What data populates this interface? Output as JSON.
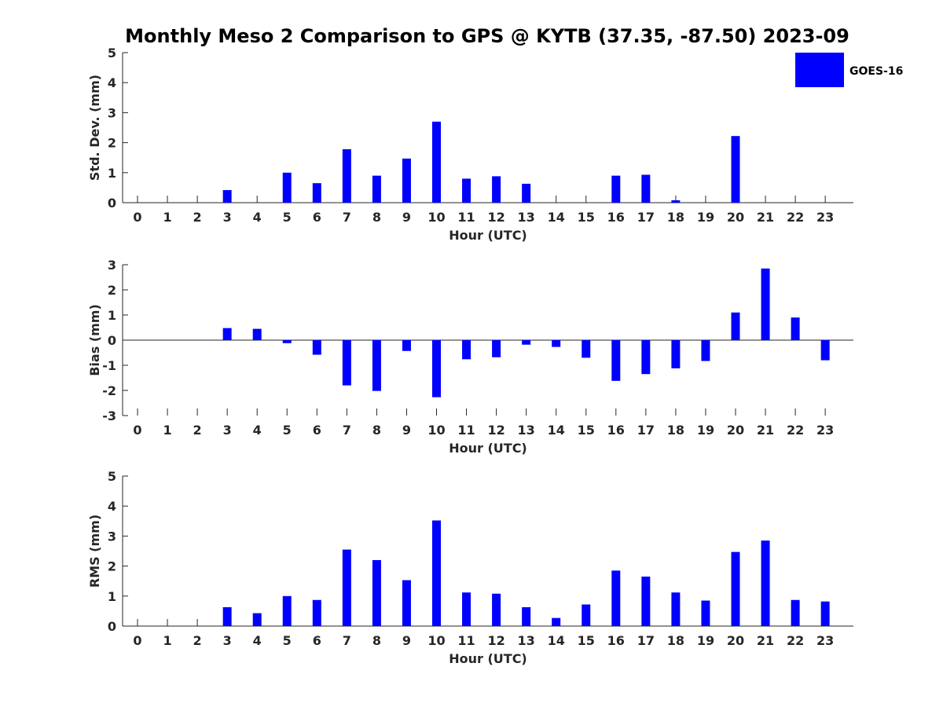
{
  "title": "Monthly Meso 2 Comparison to GPS @ KYTB (37.35, -87.50) 2023-09",
  "legend": {
    "label": "GOES-16",
    "color": "#0000ff"
  },
  "chart_data": [
    {
      "type": "bar",
      "name": "std-dev",
      "xlabel": "Hour (UTC)",
      "ylabel": "Std. Dev. (mm)",
      "ylim": [
        0,
        5
      ],
      "yticks": [
        "0",
        "1",
        "2",
        "3",
        "4",
        "5"
      ],
      "categories": [
        "0",
        "1",
        "2",
        "3",
        "4",
        "5",
        "6",
        "7",
        "8",
        "9",
        "10",
        "11",
        "12",
        "13",
        "14",
        "15",
        "16",
        "17",
        "18",
        "19",
        "20",
        "21",
        "22",
        "23"
      ],
      "series": [
        {
          "name": "GOES-16",
          "values": [
            0,
            0,
            0,
            0.42,
            0,
            1.0,
            0.65,
            1.78,
            0.9,
            1.47,
            2.7,
            0.8,
            0.88,
            0.63,
            0,
            0,
            0.9,
            0.93,
            0.08,
            0,
            2.22,
            0,
            0,
            0
          ]
        }
      ]
    },
    {
      "type": "bar",
      "name": "bias",
      "xlabel": "Hour (UTC)",
      "ylabel": "Bias (mm)",
      "ylim": [
        -3,
        3
      ],
      "yticks": [
        "-3",
        "-2",
        "-1",
        "0",
        "1",
        "2",
        "3"
      ],
      "categories": [
        "0",
        "1",
        "2",
        "3",
        "4",
        "5",
        "6",
        "7",
        "8",
        "9",
        "10",
        "11",
        "12",
        "13",
        "14",
        "15",
        "16",
        "17",
        "18",
        "19",
        "20",
        "21",
        "22",
        "23"
      ],
      "series": [
        {
          "name": "GOES-16",
          "values": [
            0,
            0,
            0,
            0.48,
            0.45,
            -0.12,
            -0.58,
            -1.8,
            -2.02,
            -0.43,
            -2.27,
            -0.76,
            -0.68,
            -0.18,
            -0.27,
            -0.7,
            -1.62,
            -1.35,
            -1.12,
            -0.83,
            1.1,
            2.85,
            0.9,
            -0.8
          ]
        }
      ]
    },
    {
      "type": "bar",
      "name": "rms",
      "xlabel": "Hour (UTC)",
      "ylabel": "RMS (mm)",
      "ylim": [
        0,
        5
      ],
      "yticks": [
        "0",
        "1",
        "2",
        "3",
        "4",
        "5"
      ],
      "categories": [
        "0",
        "1",
        "2",
        "3",
        "4",
        "5",
        "6",
        "7",
        "8",
        "9",
        "10",
        "11",
        "12",
        "13",
        "14",
        "15",
        "16",
        "17",
        "18",
        "19",
        "20",
        "21",
        "22",
        "23"
      ],
      "series": [
        {
          "name": "GOES-16",
          "values": [
            0,
            0,
            0,
            0.63,
            0.43,
            1.0,
            0.87,
            2.55,
            2.2,
            1.53,
            3.52,
            1.12,
            1.08,
            0.63,
            0.27,
            0.72,
            1.85,
            1.65,
            1.12,
            0.85,
            2.47,
            2.85,
            0.87,
            0.82
          ]
        }
      ]
    }
  ]
}
